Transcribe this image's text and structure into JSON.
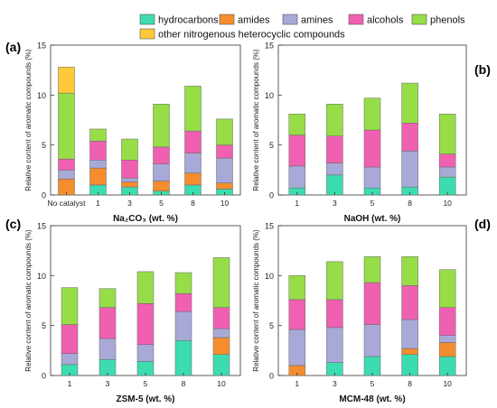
{
  "legend": {
    "items": [
      {
        "label": "hydrocarbons",
        "color": "#3ddcb0"
      },
      {
        "label": "amides",
        "color": "#f58d2e"
      },
      {
        "label": "amines",
        "color": "#a9a9d8"
      },
      {
        "label": "alcohols",
        "color": "#f060b0"
      },
      {
        "label": "phenols",
        "color": "#96dd48"
      },
      {
        "label": "other nitrogenous heterocyclic compounds",
        "color": "#ffc93a"
      }
    ]
  },
  "chart_data": [
    {
      "type": "bar",
      "stacked": true,
      "panel_label": "(a)",
      "xlabel": "Na₂CO₃ (wt. %)",
      "ylabel": "Relative content of aromatic compounds (%)",
      "ylim": [
        0,
        15
      ],
      "yticks": [
        0,
        5,
        10,
        15
      ],
      "categories": [
        "No catalyst",
        "1",
        "3",
        "5",
        "8",
        "10"
      ],
      "series": [
        {
          "name": "hydrocarbons",
          "values": [
            0,
            1.0,
            0.8,
            0.4,
            1.0,
            0.6
          ]
        },
        {
          "name": "amides",
          "values": [
            1.6,
            1.7,
            0.5,
            1.0,
            1.2,
            0.6
          ]
        },
        {
          "name": "amines",
          "values": [
            0.9,
            0.8,
            0.4,
            1.7,
            2.0,
            2.5
          ]
        },
        {
          "name": "alcohols",
          "values": [
            1.1,
            1.9,
            1.8,
            1.7,
            2.2,
            1.3
          ]
        },
        {
          "name": "phenols",
          "values": [
            6.6,
            1.2,
            2.1,
            4.3,
            4.5,
            2.6
          ]
        },
        {
          "name": "other nitrogenous heterocyclic compounds",
          "values": [
            2.6,
            0,
            0,
            0,
            0,
            0
          ]
        }
      ]
    },
    {
      "type": "bar",
      "stacked": true,
      "panel_label": "(b)",
      "xlabel": "NaOH (wt. %)",
      "ylabel": "Relative content of aromatic compounds (%)",
      "ylim": [
        0,
        15
      ],
      "yticks": [
        0,
        5,
        10,
        15
      ],
      "categories": [
        "1",
        "3",
        "5",
        "8",
        "10"
      ],
      "series": [
        {
          "name": "hydrocarbons",
          "values": [
            0.7,
            2.0,
            0.7,
            0.8,
            1.8
          ]
        },
        {
          "name": "amides",
          "values": [
            0,
            0,
            0,
            0,
            0
          ]
        },
        {
          "name": "amines",
          "values": [
            2.2,
            1.2,
            2.1,
            3.6,
            1.0
          ]
        },
        {
          "name": "alcohols",
          "values": [
            3.1,
            2.7,
            3.7,
            2.8,
            1.3
          ]
        },
        {
          "name": "phenols",
          "values": [
            2.1,
            3.2,
            3.2,
            4.0,
            4.0
          ]
        },
        {
          "name": "other nitrogenous heterocyclic compounds",
          "values": [
            0,
            0,
            0,
            0,
            0
          ]
        }
      ]
    },
    {
      "type": "bar",
      "stacked": true,
      "panel_label": "(c)",
      "xlabel": "ZSM-5 (wt. %)",
      "ylabel": "Relative content of aromatic compounds (%)",
      "ylim": [
        0,
        15
      ],
      "yticks": [
        0,
        5,
        10,
        15
      ],
      "categories": [
        "1",
        "3",
        "5",
        "8",
        "10"
      ],
      "series": [
        {
          "name": "hydrocarbons",
          "values": [
            1.1,
            1.6,
            1.4,
            3.5,
            2.1
          ]
        },
        {
          "name": "amides",
          "values": [
            0,
            0,
            0,
            0,
            1.7
          ]
        },
        {
          "name": "amines",
          "values": [
            1.1,
            2.1,
            1.7,
            2.9,
            0.9
          ]
        },
        {
          "name": "alcohols",
          "values": [
            2.9,
            3.1,
            4.1,
            1.8,
            2.1
          ]
        },
        {
          "name": "phenols",
          "values": [
            3.7,
            1.9,
            3.2,
            2.1,
            5.0
          ]
        },
        {
          "name": "other nitrogenous heterocyclic compounds",
          "values": [
            0,
            0,
            0,
            0,
            0
          ]
        }
      ]
    },
    {
      "type": "bar",
      "stacked": true,
      "panel_label": "(d)",
      "xlabel": "MCM-48 (wt. %)",
      "ylabel": "Relative content of aromatic compounds (%)",
      "ylim": [
        0,
        15
      ],
      "yticks": [
        0,
        5,
        10,
        15
      ],
      "categories": [
        "1",
        "3",
        "5",
        "8",
        "10"
      ],
      "series": [
        {
          "name": "hydrocarbons",
          "values": [
            0,
            1.3,
            1.9,
            2.1,
            1.9
          ]
        },
        {
          "name": "amides",
          "values": [
            1.0,
            0,
            0,
            0.6,
            1.4
          ]
        },
        {
          "name": "amines",
          "values": [
            3.6,
            3.5,
            3.2,
            2.9,
            0.7
          ]
        },
        {
          "name": "alcohols",
          "values": [
            3.0,
            2.8,
            4.2,
            3.4,
            2.8
          ]
        },
        {
          "name": "phenols",
          "values": [
            2.4,
            3.8,
            2.6,
            2.9,
            3.8
          ]
        },
        {
          "name": "other nitrogenous heterocyclic compounds",
          "values": [
            0,
            0,
            0,
            0,
            0
          ]
        }
      ]
    }
  ]
}
